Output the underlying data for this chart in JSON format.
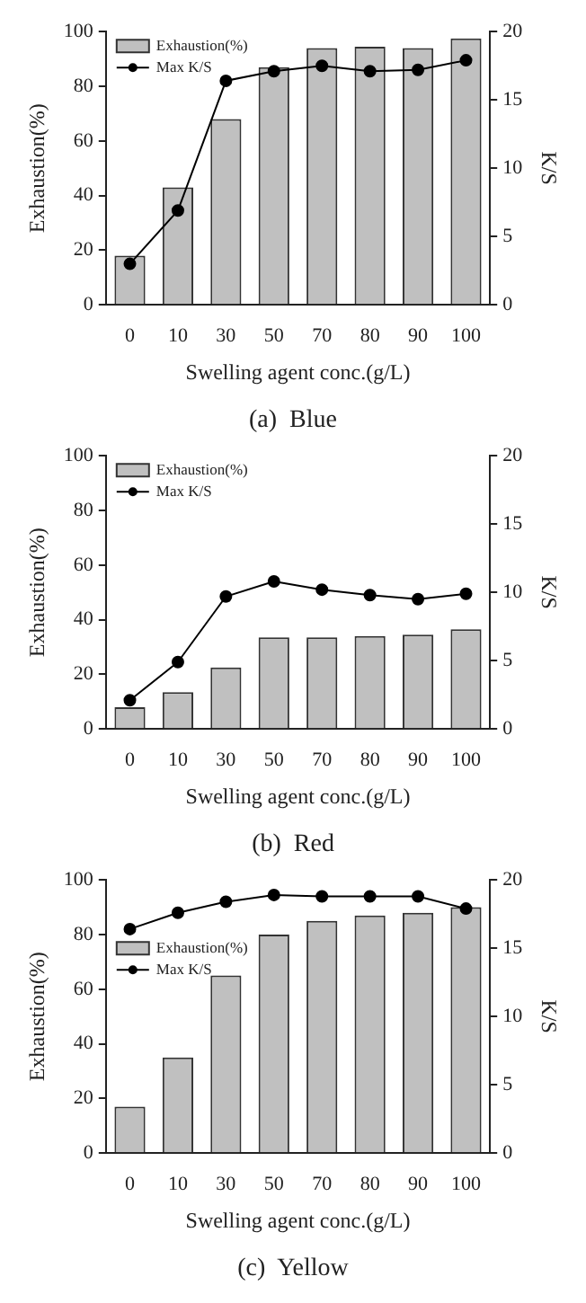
{
  "chart_data": [
    {
      "type": "bar",
      "title": "(a)  Blue",
      "xlabel": "Swelling agent conc.(g/L)",
      "ylabel": "Exhaustion(%)",
      "y2label": "K/S",
      "categories": [
        "0",
        "10",
        "30",
        "50",
        "70",
        "80",
        "90",
        "100"
      ],
      "legend": "top left",
      "ylim": [
        0,
        100
      ],
      "yticks": [
        0,
        20,
        40,
        60,
        80,
        100
      ],
      "y2lim": [
        0,
        20
      ],
      "y2ticks": [
        0,
        5,
        10,
        15,
        20
      ],
      "series": [
        {
          "name": "Exhaustion(%)",
          "color": "#c0c0c0",
          "values": [
            18,
            43,
            68,
            87,
            94,
            94.5,
            94,
            97.5
          ]
        },
        {
          "name": "Max K/S",
          "type": "line",
          "axis": "y2",
          "color": "#000000",
          "marker": "circle",
          "values": [
            3.0,
            6.9,
            16.4,
            17.1,
            17.5,
            17.1,
            17.2,
            17.9
          ]
        }
      ]
    },
    {
      "type": "bar",
      "title": "(b)  Red",
      "xlabel": "Swelling agent conc.(g/L)",
      "ylabel": "Exhaustion(%)",
      "y2label": "K/S",
      "categories": [
        "0",
        "10",
        "30",
        "50",
        "70",
        "80",
        "90",
        "100"
      ],
      "legend": "top left",
      "ylim": [
        0,
        100
      ],
      "yticks": [
        0,
        20,
        40,
        60,
        80,
        100
      ],
      "y2lim": [
        0,
        20
      ],
      "y2ticks": [
        0,
        5,
        10,
        15,
        20
      ],
      "series": [
        {
          "name": "Exhaustion(%)",
          "color": "#c0c0c0",
          "values": [
            8,
            13.5,
            22.5,
            33.5,
            33.5,
            34,
            34.5,
            36.5
          ]
        },
        {
          "name": "Max K/S",
          "type": "line",
          "axis": "y2",
          "color": "#000000",
          "marker": "circle",
          "values": [
            2.1,
            4.9,
            9.7,
            10.8,
            10.2,
            9.8,
            9.5,
            9.9
          ]
        }
      ]
    },
    {
      "type": "bar",
      "title": "(c)  Yellow",
      "xlabel": "Swelling agent conc.(g/L)",
      "ylabel": "Exhaustion(%)",
      "y2label": "K/S",
      "categories": [
        "0",
        "10",
        "30",
        "50",
        "70",
        "80",
        "90",
        "100"
      ],
      "legend": "left",
      "ylim": [
        0,
        100
      ],
      "yticks": [
        0,
        20,
        40,
        60,
        80,
        100
      ],
      "y2lim": [
        0,
        20
      ],
      "y2ticks": [
        0,
        5,
        10,
        15,
        20
      ],
      "series": [
        {
          "name": "Exhaustion(%)",
          "color": "#c0c0c0",
          "values": [
            17,
            35,
            65,
            80,
            85,
            87,
            88,
            90
          ]
        },
        {
          "name": "Max K/S",
          "type": "line",
          "axis": "y2",
          "color": "#000000",
          "marker": "circle",
          "values": [
            16.4,
            17.6,
            18.4,
            18.9,
            18.8,
            18.8,
            18.8,
            17.9
          ]
        }
      ]
    }
  ]
}
